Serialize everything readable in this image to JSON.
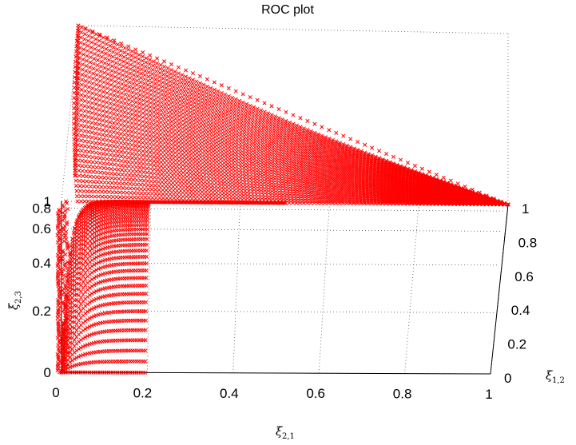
{
  "chart_data": {
    "type": "scatter",
    "title": "ROC plot",
    "marker": "x",
    "marker_color": "#ff0000",
    "grid": true,
    "projection": "3d",
    "axes": {
      "x": {
        "symbol": "ξ",
        "sub": "2,1",
        "range": [
          0,
          1
        ],
        "ticks": [
          "0",
          "0.2",
          "0.4",
          "0.6",
          "0.8",
          "1"
        ]
      },
      "y": {
        "symbol": "ξ",
        "sub": "1,2",
        "range": [
          0,
          1
        ],
        "ticks": [
          "0",
          "0.2",
          "0.4",
          "0.6",
          "0.8",
          "1"
        ]
      },
      "z": {
        "symbol": "ξ",
        "sub": "2,3",
        "range": [
          0,
          1
        ],
        "ticks": [
          "0",
          "0.2",
          "0.4",
          "0.6",
          "0.8",
          "1"
        ]
      }
    },
    "series": [
      {
        "description_points": "convex-combination points (x, y, z) sampled on the simplex surface, forming the ROC surface",
        "points": [
          [
            0,
            0,
            0
          ],
          [
            0,
            0,
            0.2
          ],
          [
            0,
            0,
            0.4
          ],
          [
            0,
            0,
            0.6
          ],
          [
            0,
            0,
            0.8
          ],
          [
            0,
            0,
            1
          ],
          [
            0.05,
            0,
            0.9
          ],
          [
            0.1,
            0,
            0.97
          ],
          [
            0.2,
            0,
            0.99
          ],
          [
            0.4,
            0,
            1
          ],
          [
            0.6,
            0,
            1
          ],
          [
            0.8,
            0,
            1
          ],
          [
            1,
            0,
            1
          ],
          [
            0,
            1,
            1
          ],
          [
            0.25,
            0.75,
            1
          ],
          [
            0.5,
            0.5,
            1
          ],
          [
            0.75,
            0.25,
            1
          ],
          [
            0,
            0.5,
            1
          ],
          [
            0.25,
            0.5,
            1
          ],
          [
            0.5,
            0.25,
            1
          ]
        ]
      }
    ]
  }
}
